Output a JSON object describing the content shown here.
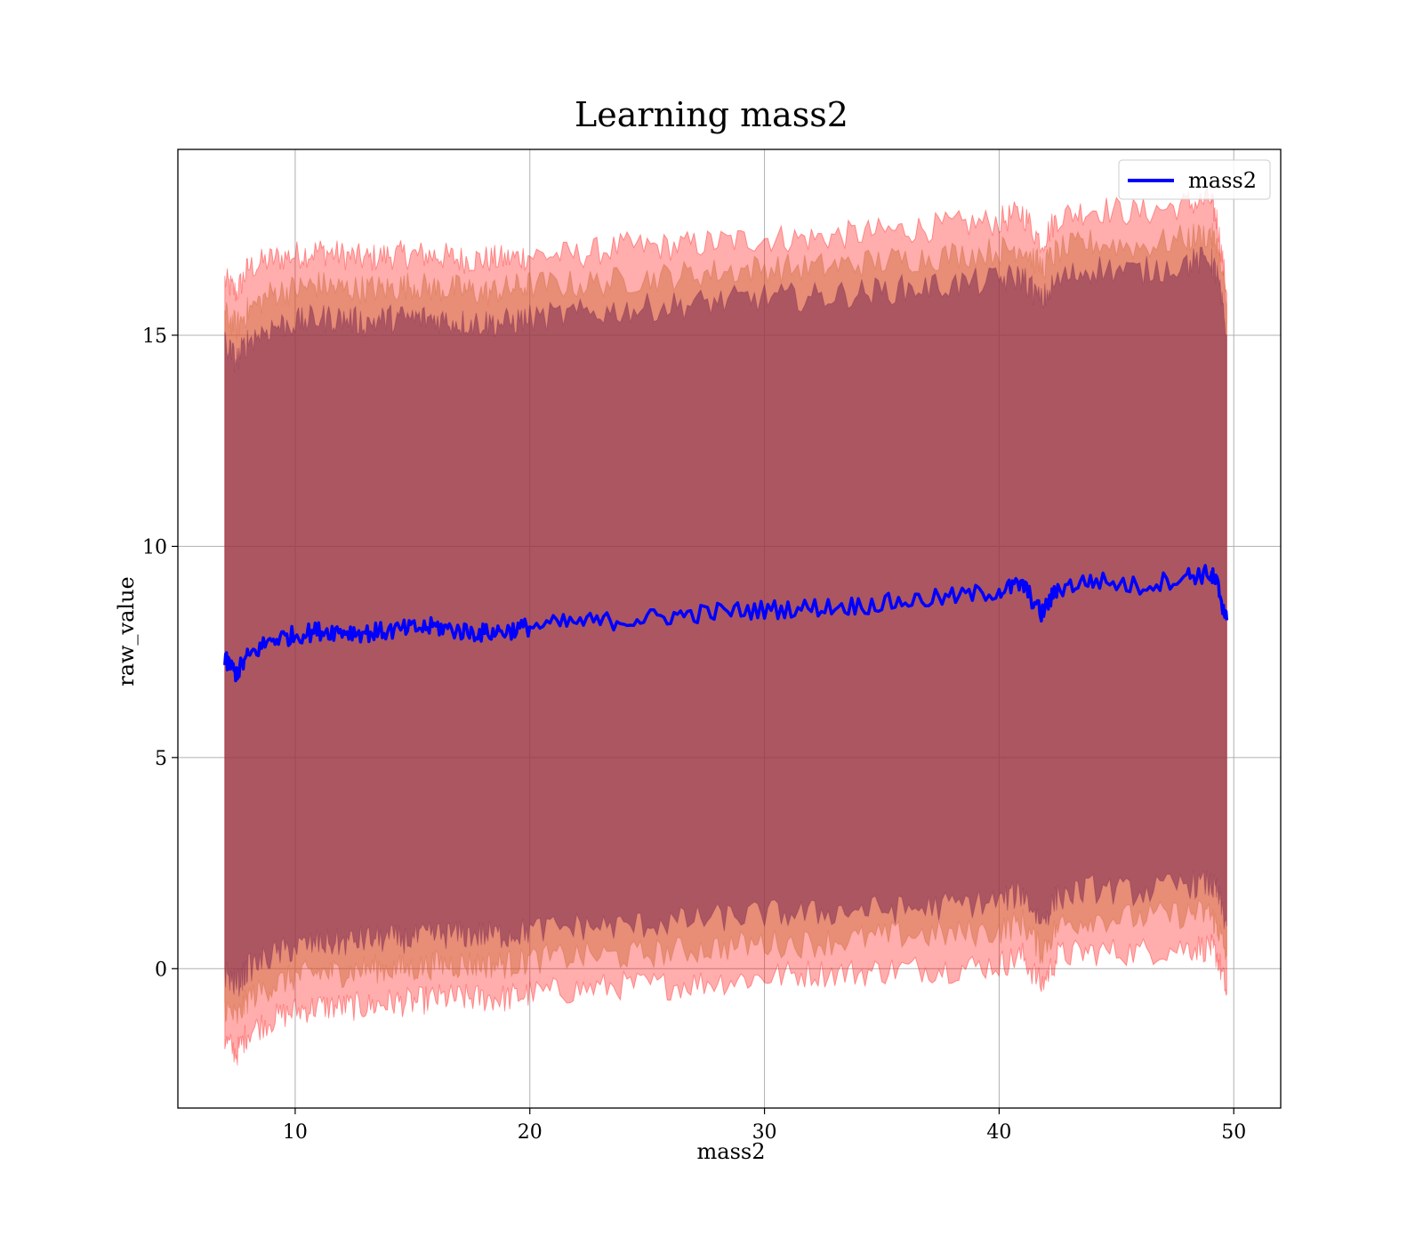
{
  "chart_data": {
    "type": "line",
    "title": "Learning mass2",
    "xlabel": "mass2",
    "ylabel": "raw_value",
    "xlim": [
      5,
      52
    ],
    "ylim": [
      -3.3,
      19.4
    ],
    "xticks": [
      10,
      20,
      30,
      40,
      50
    ],
    "yticks": [
      0,
      5,
      10,
      15
    ],
    "grid": true,
    "legend_position": "top-right",
    "legend": [
      {
        "label": "mass2",
        "color": "#0000ff"
      }
    ],
    "colors": {
      "line": "#0000ff",
      "band_outer": "#ff0000",
      "band_middle": "#cc6633",
      "band_inner": "#7a2a52"
    },
    "series": [
      {
        "name": "mass2",
        "x": [
          7.0,
          7.5,
          8,
          9,
          10,
          11,
          12,
          13,
          14,
          15,
          16,
          17,
          18,
          19,
          20,
          22,
          24,
          26,
          28,
          30,
          32,
          34,
          36,
          38,
          40,
          41,
          41.8,
          42.5,
          44,
          46,
          48,
          49,
          49.3,
          49.7
        ],
        "y": [
          7.3,
          7.0,
          7.4,
          7.8,
          7.9,
          8.0,
          8.0,
          7.95,
          8.0,
          8.05,
          8.1,
          8.0,
          7.95,
          8.0,
          8.1,
          8.2,
          8.25,
          8.35,
          8.45,
          8.5,
          8.55,
          8.6,
          8.7,
          8.8,
          8.95,
          9.1,
          8.4,
          9.0,
          9.2,
          9.05,
          9.3,
          9.35,
          9.1,
          8.25
        ]
      }
    ],
    "bands": [
      {
        "x": [
          7.0,
          7.5,
          8,
          9,
          10,
          11,
          12,
          13,
          14,
          15,
          16,
          17,
          18,
          19,
          20,
          22,
          24,
          26,
          28,
          30,
          32,
          34,
          36,
          38,
          40,
          41,
          41.8,
          42.5,
          44,
          46,
          48,
          49,
          49.3,
          49.7
        ],
        "upper": [
          16.3,
          16.0,
          16.6,
          16.8,
          16.9,
          17.0,
          16.9,
          16.8,
          16.9,
          16.9,
          16.9,
          16.8,
          16.8,
          16.8,
          16.9,
          16.9,
          17.1,
          17.1,
          17.2,
          17.3,
          17.3,
          17.4,
          17.5,
          17.6,
          17.7,
          17.9,
          17.2,
          17.8,
          18.0,
          17.9,
          18.1,
          18.2,
          17.7,
          16.0
        ],
        "lower": [
          -1.7,
          -2.0,
          -1.5,
          -1.2,
          -1.0,
          -0.9,
          -0.9,
          -0.9,
          -0.8,
          -0.8,
          -0.7,
          -0.7,
          -0.7,
          -0.7,
          -0.6,
          -0.5,
          -0.4,
          -0.4,
          -0.3,
          -0.2,
          -0.1,
          -0.1,
          0.0,
          0.0,
          0.1,
          0.3,
          -0.4,
          0.3,
          0.4,
          0.4,
          0.5,
          0.5,
          0.3,
          -0.6
        ]
      },
      {
        "x": [
          7.0,
          7.5,
          8,
          9,
          10,
          11,
          12,
          13,
          14,
          15,
          16,
          17,
          18,
          19,
          20,
          22,
          24,
          26,
          28,
          30,
          32,
          34,
          36,
          38,
          40,
          41,
          41.8,
          42.5,
          44,
          46,
          48,
          49,
          49.3,
          49.7
        ],
        "upper": [
          15.5,
          15.2,
          15.6,
          16.0,
          16.1,
          16.2,
          16.1,
          16.1,
          16.1,
          16.2,
          16.1,
          16.1,
          16.0,
          16.1,
          16.2,
          16.2,
          16.3,
          16.4,
          16.5,
          16.6,
          16.6,
          16.7,
          16.8,
          16.9,
          17.0,
          17.1,
          16.6,
          17.0,
          17.2,
          17.1,
          17.3,
          17.4,
          17.1,
          15.7
        ],
        "lower": [
          -0.9,
          -1.2,
          -0.7,
          -0.4,
          -0.2,
          -0.1,
          -0.1,
          0.0,
          0.0,
          0.0,
          0.1,
          0.1,
          0.1,
          0.1,
          0.2,
          0.3,
          0.3,
          0.4,
          0.5,
          0.6,
          0.6,
          0.7,
          0.8,
          0.8,
          0.9,
          1.1,
          0.4,
          1.0,
          1.2,
          1.2,
          1.3,
          1.3,
          1.0,
          0.3
        ]
      },
      {
        "x": [
          7.0,
          7.5,
          8,
          9,
          10,
          11,
          12,
          13,
          14,
          15,
          16,
          17,
          18,
          19,
          20,
          22,
          24,
          26,
          28,
          30,
          32,
          34,
          36,
          38,
          40,
          41,
          41.8,
          42.5,
          44,
          46,
          48,
          49,
          49.3,
          49.7
        ],
        "upper": [
          14.8,
          14.4,
          14.9,
          15.2,
          15.3,
          15.4,
          15.4,
          15.3,
          15.4,
          15.4,
          15.4,
          15.3,
          15.3,
          15.3,
          15.4,
          15.5,
          15.6,
          15.7,
          15.8,
          15.9,
          15.9,
          16.0,
          16.1,
          16.2,
          16.3,
          16.4,
          15.8,
          16.3,
          16.6,
          16.5,
          16.7,
          16.8,
          16.4,
          15.0
        ],
        "lower": [
          -0.1,
          -0.4,
          0.0,
          0.3,
          0.5,
          0.6,
          0.6,
          0.7,
          0.7,
          0.7,
          0.8,
          0.8,
          0.8,
          0.8,
          0.9,
          1.0,
          1.0,
          1.1,
          1.2,
          1.3,
          1.3,
          1.4,
          1.4,
          1.5,
          1.6,
          1.8,
          1.1,
          1.7,
          1.9,
          1.8,
          2.0,
          2.0,
          1.8,
          1.0
        ]
      }
    ]
  }
}
